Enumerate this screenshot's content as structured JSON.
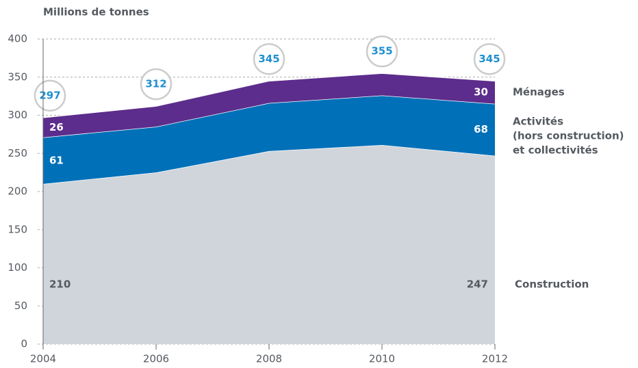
{
  "chart_data": {
    "type": "stacked_area",
    "title": "Millions de tonnes",
    "x": [
      2004,
      2006,
      2008,
      2010,
      2012
    ],
    "xlim": [
      2004,
      2012
    ],
    "xticks": [
      2004,
      2006,
      2008,
      2010,
      2012
    ],
    "ylim": [
      0,
      400
    ],
    "yticks": [
      0,
      50,
      100,
      150,
      200,
      250,
      300,
      350,
      400
    ],
    "grid": true,
    "series": [
      {
        "name": "Construction",
        "color": "#d0d5db",
        "label_color": "#555a60",
        "values": [
          210,
          225,
          253,
          261,
          247
        ],
        "value_labels": [
          "210",
          null,
          null,
          null,
          "247"
        ]
      },
      {
        "name": "Activités\n(hors construction)\net collectivités",
        "color": "#0070b8",
        "label_color": "#ffffff",
        "values": [
          61,
          60,
          63,
          65,
          68
        ],
        "value_labels": [
          "61",
          null,
          null,
          null,
          "68"
        ]
      },
      {
        "name": "Ménages",
        "color": "#5c2d8c",
        "label_color": "#ffffff",
        "values": [
          26,
          27,
          29,
          29,
          30
        ],
        "value_labels": [
          "26",
          null,
          null,
          null,
          "30"
        ]
      }
    ],
    "totals": [
      297,
      312,
      345,
      355,
      345
    ],
    "totals_color": "#1f8fd0"
  }
}
